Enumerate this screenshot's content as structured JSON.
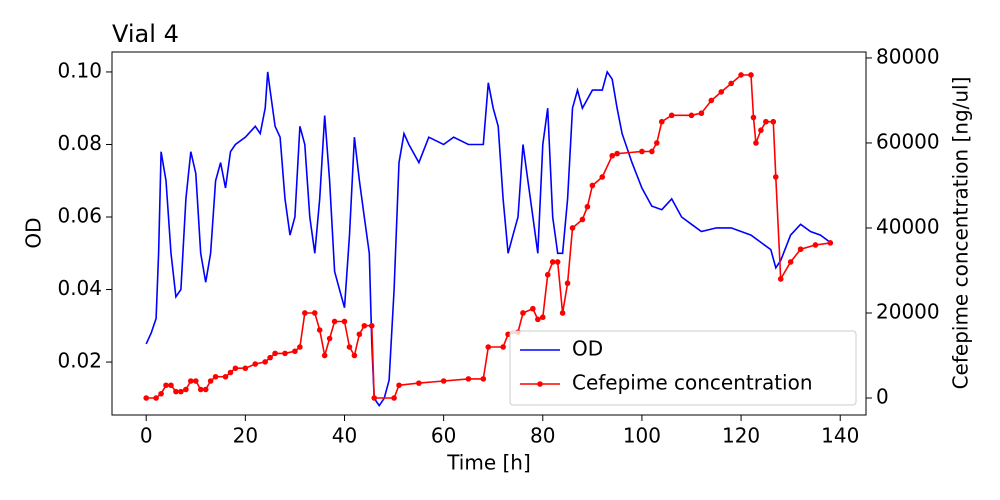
{
  "chart_data": {
    "type": "line",
    "title": "Vial 4",
    "xlabel": "Time [h]",
    "ylabel": "OD",
    "y2label": "Cefepime concentration [ng/ul]",
    "xlim": [
      -6.9,
      145.2
    ],
    "xticks": [
      0,
      20,
      40,
      60,
      80,
      100,
      120,
      140
    ],
    "ylim": [
      0.0054,
      0.1055
    ],
    "yticks": [
      0.02,
      0.04,
      0.06,
      0.08,
      {
        "value": 0.1,
        "label": "0.10"
      }
    ],
    "y2lim": [
      -4000,
      81400
    ],
    "y2ticks": [
      0,
      20000,
      40000,
      60000,
      80000
    ],
    "legend": "lower right",
    "series": [
      {
        "name": "OD",
        "color": "#0000ff",
        "axis": "y",
        "markers": false,
        "x": [
          0,
          1,
          2,
          2.5,
          3,
          4,
          5,
          6,
          7,
          8,
          9,
          10,
          11,
          12,
          13,
          14,
          15,
          16,
          17,
          18,
          20,
          22,
          23,
          24,
          24.5,
          25,
          26,
          27,
          28,
          29,
          30,
          31,
          32,
          33,
          34,
          35,
          36,
          37,
          38,
          39,
          40,
          41,
          42,
          43,
          44,
          45,
          45.5,
          46,
          47,
          48,
          49,
          50,
          51,
          52,
          53,
          55,
          57,
          60,
          62,
          65,
          67,
          68,
          69,
          70,
          71,
          72,
          73,
          74,
          75,
          76,
          77,
          78,
          79,
          80,
          81,
          82,
          83,
          84,
          85,
          86,
          87,
          88,
          90,
          92,
          93,
          94,
          95,
          96,
          98,
          100,
          102,
          104,
          106,
          108,
          110,
          112,
          115,
          118,
          120,
          122,
          124,
          126,
          127,
          128,
          130,
          132,
          134,
          136,
          138
        ],
        "values": [
          0.025,
          0.028,
          0.032,
          0.05,
          0.078,
          0.07,
          0.05,
          0.038,
          0.04,
          0.065,
          0.078,
          0.072,
          0.05,
          0.042,
          0.05,
          0.07,
          0.075,
          0.068,
          0.078,
          0.08,
          0.082,
          0.085,
          0.083,
          0.09,
          0.1,
          0.095,
          0.085,
          0.082,
          0.065,
          0.055,
          0.06,
          0.085,
          0.08,
          0.06,
          0.05,
          0.065,
          0.088,
          0.07,
          0.045,
          0.04,
          0.035,
          0.055,
          0.082,
          0.07,
          0.06,
          0.05,
          0.025,
          0.01,
          0.008,
          0.01,
          0.015,
          0.04,
          0.075,
          0.083,
          0.08,
          0.075,
          0.082,
          0.08,
          0.082,
          0.08,
          0.08,
          0.08,
          0.097,
          0.09,
          0.085,
          0.065,
          0.05,
          0.055,
          0.06,
          0.08,
          0.07,
          0.06,
          0.05,
          0.08,
          0.09,
          0.06,
          0.05,
          0.05,
          0.065,
          0.09,
          0.095,
          0.09,
          0.095,
          0.095,
          0.1,
          0.098,
          0.09,
          0.083,
          0.075,
          0.068,
          0.063,
          0.062,
          0.065,
          0.06,
          0.058,
          0.056,
          0.057,
          0.057,
          0.056,
          0.055,
          0.053,
          0.051,
          0.046,
          0.048,
          0.055,
          0.058,
          0.056,
          0.055,
          0.053
        ]
      },
      {
        "name": "Cefepime concentration",
        "color": "#ff0000",
        "axis": "y2",
        "markers": true,
        "x": [
          0,
          2,
          3,
          4,
          5,
          6,
          7,
          8,
          9,
          10,
          11,
          12,
          13,
          14,
          16,
          17,
          18,
          20,
          22,
          24,
          25,
          26,
          28,
          30,
          31,
          32,
          34,
          35,
          36,
          37,
          38,
          40,
          41,
          42,
          43,
          44,
          45.5,
          46,
          50,
          51,
          55,
          60,
          65,
          68,
          69,
          72,
          73,
          75,
          76,
          78,
          79,
          80,
          81,
          82,
          83,
          84,
          85,
          86,
          88,
          89,
          90,
          92,
          94,
          95,
          100,
          102,
          103,
          104,
          106,
          110,
          112,
          114,
          116,
          118,
          120,
          122,
          122.5,
          123,
          124,
          125,
          126.5,
          127,
          128,
          130,
          132,
          135,
          138
        ],
        "values": [
          0,
          0,
          1000,
          3000,
          3000,
          1500,
          1500,
          2000,
          4000,
          4000,
          2000,
          2000,
          4000,
          5000,
          5000,
          6000,
          7000,
          7000,
          8000,
          8500,
          9500,
          10500,
          10500,
          11000,
          12000,
          20000,
          20000,
          16000,
          10000,
          14000,
          18000,
          18000,
          12000,
          10000,
          15000,
          17000,
          17000,
          0,
          0,
          3000,
          3500,
          4000,
          4500,
          4500,
          12000,
          12000,
          15000,
          15500,
          20000,
          21000,
          18500,
          19000,
          29000,
          32000,
          32000,
          20000,
          27000,
          40000,
          42000,
          45000,
          50000,
          52000,
          57000,
          57500,
          58000,
          58000,
          60000,
          65000,
          66500,
          66500,
          67000,
          70000,
          72000,
          74000,
          76000,
          76000,
          66000,
          60000,
          63000,
          65000,
          65000,
          52000,
          28000,
          32000,
          35000,
          36000,
          36500
        ]
      }
    ]
  }
}
